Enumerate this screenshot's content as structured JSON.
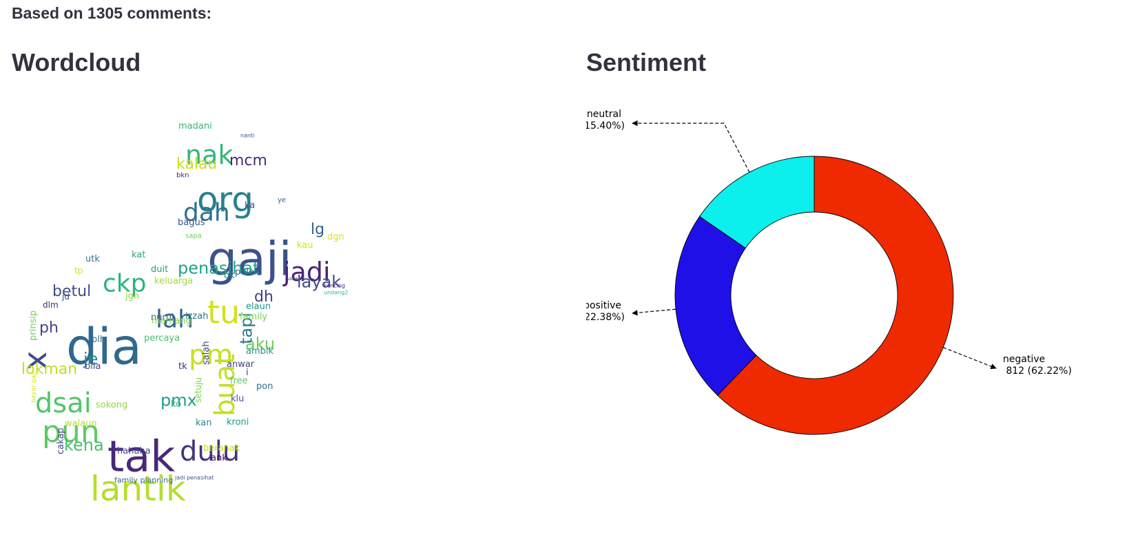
{
  "header": {
    "summary": "Based on 1305 comments:"
  },
  "sections": {
    "wordcloud_title": "Wordcloud",
    "sentiment_title": "Sentiment"
  },
  "wordcloud": {
    "palette": "viridis",
    "words": [
      {
        "text": "dia",
        "size": 72,
        "color": "#31688e"
      },
      {
        "text": "gaji",
        "size": 68,
        "color": "#3b528b"
      },
      {
        "text": "tak",
        "size": 62,
        "color": "#482878"
      },
      {
        "text": "lantik",
        "size": 50,
        "color": "#b5de2b"
      },
      {
        "text": "org",
        "size": 50,
        "color": "#26828e"
      },
      {
        "text": "x",
        "size": 46,
        "color": "#3e4989"
      },
      {
        "text": "pun",
        "size": 44,
        "color": "#5ec962"
      },
      {
        "text": "tu",
        "size": 46,
        "color": "#d2e21b"
      },
      {
        "text": "buat",
        "size": 40,
        "color": "#c2df23"
      },
      {
        "text": "dulu",
        "size": 40,
        "color": "#46337e"
      },
      {
        "text": "dsai",
        "size": 40,
        "color": "#52c569"
      },
      {
        "text": "pm",
        "size": 40,
        "color": "#c8e020"
      },
      {
        "text": "nak",
        "size": 38,
        "color": "#35b779"
      },
      {
        "text": "dah",
        "size": 36,
        "color": "#2c728e"
      },
      {
        "text": "jadi",
        "size": 38,
        "color": "#482475"
      },
      {
        "text": "lah",
        "size": 36,
        "color": "#33638d"
      },
      {
        "text": "ckp",
        "size": 36,
        "color": "#2fb47c"
      },
      {
        "text": "kena",
        "size": 24,
        "color": "#44bf70"
      },
      {
        "text": "penasihat",
        "size": 24,
        "color": "#20a386"
      },
      {
        "text": "layak",
        "size": 24,
        "color": "#3e4a89"
      },
      {
        "text": "lokman",
        "size": 22,
        "color": "#bddf26"
      },
      {
        "text": "pmx",
        "size": 24,
        "color": "#1f9e89"
      },
      {
        "text": "aku",
        "size": 24,
        "color": "#6ccd5a"
      },
      {
        "text": "tapi",
        "size": 24,
        "color": "#2a788e"
      },
      {
        "text": "je",
        "size": 24,
        "color": "#228c8d"
      },
      {
        "text": "betul",
        "size": 22,
        "color": "#3e4c8a"
      },
      {
        "text": "kalau",
        "size": 22,
        "color": "#c8e020"
      },
      {
        "text": "mcm",
        "size": 22,
        "color": "#472c7a"
      },
      {
        "text": "dh",
        "size": 22,
        "color": "#433e85"
      },
      {
        "text": "lg",
        "size": 22,
        "color": "#34618d"
      },
      {
        "text": "ph",
        "size": 22,
        "color": "#3f4788"
      },
      {
        "text": "prinsip",
        "size": 13,
        "color": "#75d054"
      },
      {
        "text": "madani",
        "size": 13,
        "color": "#35b779"
      },
      {
        "text": "bagus",
        "size": 13,
        "color": "#3b528b"
      },
      {
        "text": "kat",
        "size": 13,
        "color": "#22a884"
      },
      {
        "text": "utk",
        "size": 13,
        "color": "#2a788e"
      },
      {
        "text": "duit",
        "size": 13,
        "color": "#1fa088"
      },
      {
        "text": "keluarga",
        "size": 13,
        "color": "#a5db36"
      },
      {
        "text": "ok",
        "size": 13,
        "color": "#26828e"
      },
      {
        "text": "pulak",
        "size": 13,
        "color": "#355f8d"
      },
      {
        "text": "dgn",
        "size": 13,
        "color": "#d8e219"
      },
      {
        "text": "kau",
        "size": 13,
        "color": "#d2e21b"
      },
      {
        "text": "ka",
        "size": 13,
        "color": "#3b528b"
      },
      {
        "text": "jgn",
        "size": 13,
        "color": "#89d548"
      },
      {
        "text": "jd",
        "size": 12,
        "color": "#3e4a89"
      },
      {
        "text": "dlm",
        "size": 12,
        "color": "#472d7b"
      },
      {
        "text": "tp",
        "size": 12,
        "color": "#d8e219"
      },
      {
        "text": "nurul",
        "size": 13,
        "color": "#33638d"
      },
      {
        "text": "izzah",
        "size": 13,
        "color": "#2a768e"
      },
      {
        "text": "memang",
        "size": 13,
        "color": "#86d549"
      },
      {
        "text": "elaun",
        "size": 13,
        "color": "#1f948c"
      },
      {
        "text": "family",
        "size": 13,
        "color": "#75d054"
      },
      {
        "text": "ambik",
        "size": 13,
        "color": "#21918c"
      },
      {
        "text": "percaya",
        "size": 13,
        "color": "#4ac16d"
      },
      {
        "text": "blh",
        "size": 13,
        "color": "#2d708e"
      },
      {
        "text": "bila",
        "size": 13,
        "color": "#404688"
      },
      {
        "text": "tk",
        "size": 13,
        "color": "#472f7d"
      },
      {
        "text": "salah",
        "size": 13,
        "color": "#3e4989"
      },
      {
        "text": "anwar",
        "size": 13,
        "color": "#414487"
      },
      {
        "text": "i",
        "size": 13,
        "color": "#443983"
      },
      {
        "text": "free",
        "size": 13,
        "color": "#5ec962"
      },
      {
        "text": "pon",
        "size": 13,
        "color": "#2c728e"
      },
      {
        "text": "klu",
        "size": 13,
        "color": "#39568c"
      },
      {
        "text": "sokong",
        "size": 13,
        "color": "#95d840"
      },
      {
        "text": "walaun",
        "size": 13,
        "color": "#b0dd2f"
      },
      {
        "text": "ko",
        "size": 13,
        "color": "#29af7f"
      },
      {
        "text": "setuju",
        "size": 12,
        "color": "#7ad151"
      },
      {
        "text": "kan",
        "size": 13,
        "color": "#23888e"
      },
      {
        "text": "kroni",
        "size": 13,
        "color": "#1e9b8a"
      },
      {
        "text": "cakap",
        "size": 13,
        "color": "#3f4889"
      },
      {
        "text": "hahaha",
        "size": 13,
        "color": "#3e4a89"
      },
      {
        "text": "beranak",
        "size": 13,
        "color": "#c2df23"
      },
      {
        "text": "ank",
        "size": 13,
        "color": "#450559"
      },
      {
        "text": "family planning",
        "size": 11,
        "color": "#31688e"
      },
      {
        "text": "jadi penasihat",
        "size": 8,
        "color": "#3b528b"
      },
      {
        "text": "bayar gaji",
        "size": 9,
        "color": "#d2e21b"
      },
      {
        "text": "nanti",
        "size": 8,
        "color": "#3e4c8a"
      },
      {
        "text": "bkn",
        "size": 10,
        "color": "#482475"
      },
      {
        "text": "ye",
        "size": 10,
        "color": "#33638d"
      },
      {
        "text": "sapa",
        "size": 10,
        "color": "#6ccd5a"
      },
      {
        "text": "kencing",
        "size": 8,
        "color": "#472c7a"
      },
      {
        "text": "undang2",
        "size": 8,
        "color": "#35b779"
      },
      {
        "text": "sanang",
        "size": 7,
        "color": "#3b528b"
      }
    ]
  },
  "chart_data": {
    "type": "pie",
    "donut": true,
    "title": "",
    "total": 1305,
    "slices": [
      {
        "label": "negative",
        "value": 812,
        "percent": 62.22,
        "color": "#ef2900",
        "annotation": "negative\n 812 (62.22%)"
      },
      {
        "label": "positive",
        "value": 292,
        "percent": 22.38,
        "color": "#1f10e8",
        "annotation": "positive\n292 (22.38%)"
      },
      {
        "label": "neutral",
        "value": 201,
        "percent": 15.4,
        "color": "#0bf0ec",
        "annotation": "neutral\n201 (15.40%)"
      }
    ],
    "start_angle_deg": 90,
    "direction": "clockwise",
    "legend": "none"
  }
}
